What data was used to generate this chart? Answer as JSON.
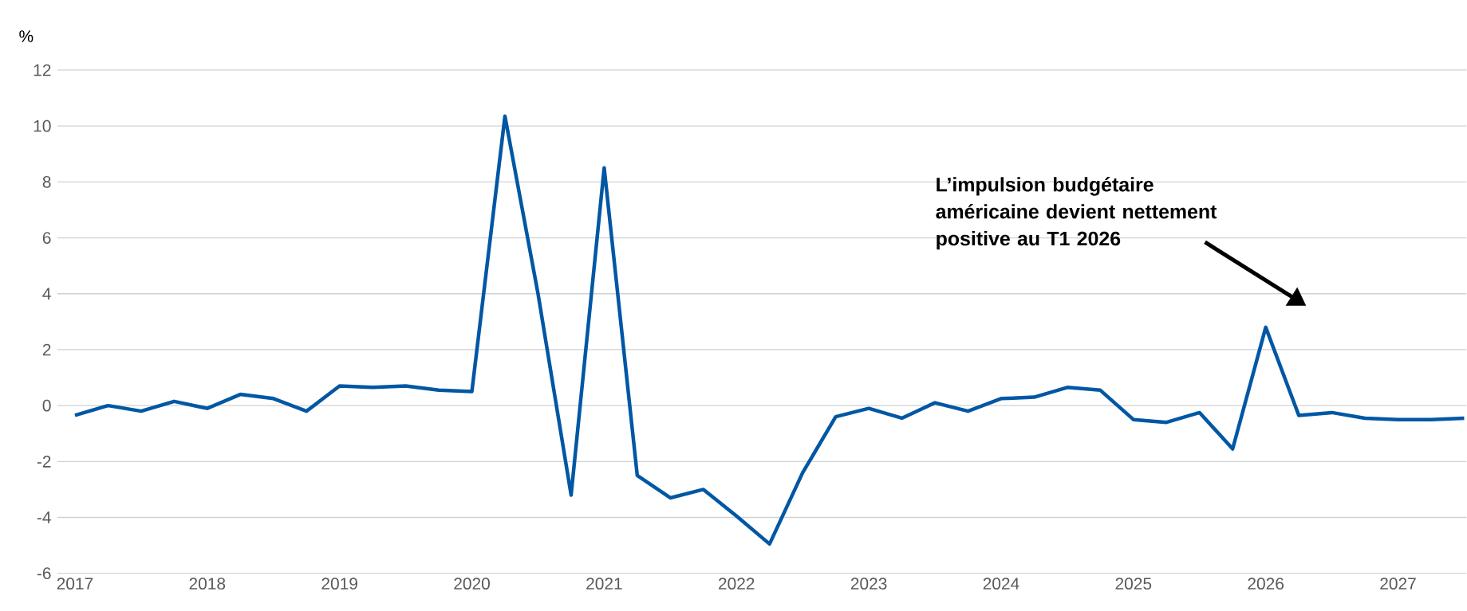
{
  "chart_data": {
    "type": "line",
    "ylabel": "%",
    "categories": [
      "2017",
      null,
      null,
      null,
      "2018",
      null,
      null,
      null,
      "2019",
      null,
      null,
      null,
      "2020",
      null,
      null,
      null,
      "2021",
      null,
      null,
      null,
      "2022",
      null,
      null,
      null,
      "2023",
      null,
      null,
      null,
      "2024",
      null,
      null,
      null,
      "2025",
      null,
      null,
      null,
      "2026",
      null,
      null,
      null,
      "2027",
      null,
      null
    ],
    "series": [
      {
        "color": "#0057a4",
        "values": [
          -0.35,
          0.0,
          -0.2,
          0.15,
          -0.1,
          0.4,
          0.25,
          -0.2,
          0.7,
          0.65,
          0.7,
          0.55,
          0.5,
          10.35,
          4.0,
          -3.2,
          8.5,
          -2.5,
          -3.3,
          -3.0,
          -3.95,
          -4.95,
          -2.4,
          -0.4,
          -0.1,
          -0.45,
          0.1,
          -0.2,
          0.25,
          0.3,
          0.65,
          0.55,
          -0.5,
          -0.6,
          -0.25,
          -1.55,
          2.8,
          -0.35,
          -0.25,
          -0.45,
          -0.5,
          -0.5,
          -0.45
        ]
      }
    ],
    "ylim": [
      -6,
      12
    ],
    "yticks": [
      -6,
      -4,
      -2,
      0,
      2,
      4,
      6,
      8,
      10,
      12
    ],
    "grid": "y",
    "marker": "none",
    "line_style": "solid",
    "annotations": [
      "L’impulsion budgétaire américaine devient nettement positive au T1 2026"
    ]
  }
}
